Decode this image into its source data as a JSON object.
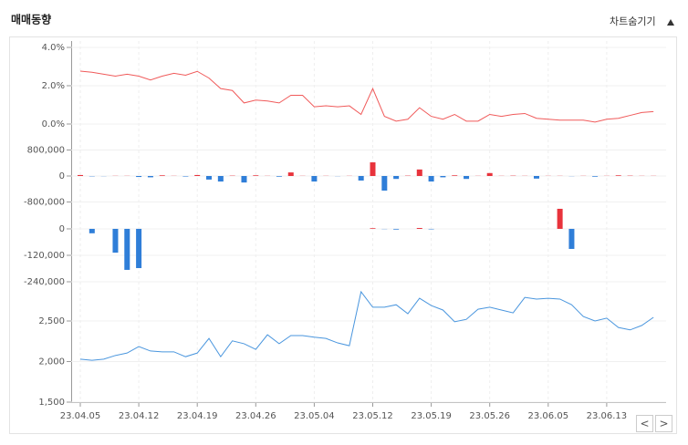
{
  "header": {
    "title": "매매동향",
    "toggle": "차트숨기기"
  },
  "nav": {
    "prev": "<",
    "next": ">"
  },
  "chart_data": [
    {
      "type": "line",
      "color": "#f05a5a",
      "ylim": [
        0,
        4
      ],
      "yticks": [
        {
          "value": 0,
          "label": "0.0%"
        },
        {
          "value": 2,
          "label": "2.0%"
        },
        {
          "value": 4,
          "label": "4.0%"
        }
      ],
      "values": [
        2.76,
        2.7,
        2.6,
        2.5,
        2.6,
        2.5,
        2.3,
        2.5,
        2.65,
        2.55,
        2.75,
        2.4,
        1.85,
        1.75,
        1.1,
        1.25,
        1.2,
        1.1,
        1.5,
        1.5,
        0.9,
        0.95,
        0.9,
        0.95,
        0.5,
        1.85,
        0.4,
        0.15,
        0.25,
        0.85,
        0.4,
        0.25,
        0.5,
        0.15,
        0.15,
        0.5,
        0.4,
        0.5,
        0.55,
        0.3,
        0.25,
        0.2,
        0.2,
        0.2,
        0.1,
        0.25,
        0.3,
        0.45,
        0.6,
        0.65
      ]
    },
    {
      "type": "bar",
      "up_color": "#e8333c",
      "down_color": "#2f7ed8",
      "ylim": [
        -1200000,
        1200000
      ],
      "yticks": [
        {
          "value": -800000,
          "label": "-800,000"
        },
        0,
        {
          "value": 800000,
          "label": "800,000"
        }
      ],
      "values": [
        30000,
        -10000,
        -5000,
        5000,
        5000,
        -30000,
        -40000,
        20000,
        5000,
        -15000,
        30000,
        -110000,
        -170000,
        10000,
        -200000,
        20000,
        5000,
        -20000,
        110000,
        5000,
        -170000,
        5000,
        -5000,
        5000,
        -140000,
        420000,
        -450000,
        -90000,
        10000,
        200000,
        -170000,
        -40000,
        20000,
        -90000,
        5000,
        90000,
        5000,
        10000,
        5000,
        -80000,
        5000,
        5000,
        -5000,
        5000,
        -20000,
        5000,
        20000,
        10000,
        5000,
        5000
      ]
    },
    {
      "type": "bar",
      "up_color": "#e8333c",
      "down_color": "#2f7ed8",
      "ylim": [
        -300000,
        100000
      ],
      "yticks": [
        {
          "value": -240000,
          "label": "-240,000"
        },
        {
          "value": -120000,
          "label": "-120,000"
        },
        0
      ],
      "values": [
        0,
        -20000,
        0,
        -108000,
        -186000,
        -178000,
        0,
        0,
        0,
        0,
        0,
        0,
        0,
        0,
        0,
        0,
        0,
        0,
        0,
        0,
        0,
        0,
        0,
        0,
        0,
        3000,
        -1000,
        -3000,
        0,
        4000,
        -2000,
        0,
        0,
        0,
        0,
        0,
        0,
        0,
        0,
        0,
        0,
        91000,
        -91000,
        0,
        0,
        0,
        0,
        0,
        0,
        0
      ]
    },
    {
      "type": "line",
      "color": "#4a96de",
      "ylim": [
        1500,
        3000
      ],
      "yticks": [
        {
          "value": 1500,
          "label": "1,500"
        },
        {
          "value": 2000,
          "label": "2,000"
        },
        {
          "value": 2500,
          "label": "2,500"
        }
      ],
      "categories": [
        "23.04.05",
        null,
        null,
        null,
        null,
        "23.04.12",
        null,
        null,
        null,
        null,
        "23.04.19",
        null,
        null,
        null,
        null,
        "23.04.26",
        null,
        null,
        null,
        null,
        "23.05.04",
        null,
        null,
        null,
        null,
        "23.05.12",
        null,
        null,
        null,
        null,
        "23.05.19",
        null,
        null,
        null,
        null,
        "23.05.26",
        null,
        null,
        null,
        null,
        "23.06.05",
        null,
        null,
        null,
        null,
        "23.06.13",
        null,
        null,
        null,
        null
      ],
      "values": [
        2030,
        2015,
        2030,
        2075,
        2105,
        2185,
        2130,
        2120,
        2120,
        2060,
        2105,
        2285,
        2060,
        2255,
        2220,
        2150,
        2330,
        2220,
        2320,
        2320,
        2300,
        2285,
        2230,
        2195,
        2860,
        2670,
        2670,
        2700,
        2590,
        2780,
        2690,
        2635,
        2490,
        2520,
        2645,
        2670,
        2635,
        2600,
        2790,
        2770,
        2780,
        2770,
        2700,
        2555,
        2500,
        2535,
        2420,
        2390,
        2445,
        2545
      ]
    }
  ]
}
